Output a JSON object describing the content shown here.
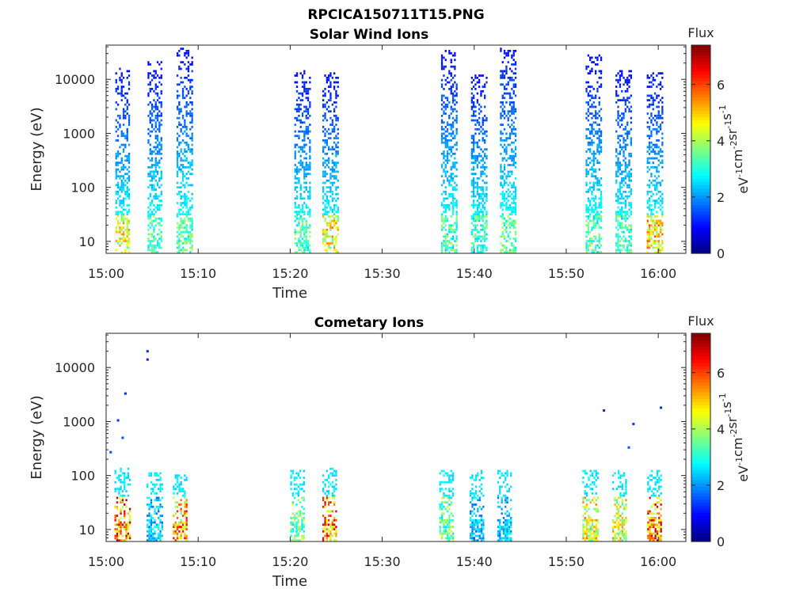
{
  "figure_title": "RPCICA150711T15.PNG",
  "chart_data": [
    {
      "type": "heatmap",
      "title": "Solar Wind Ions",
      "xlabel": "Time",
      "ylabel": "Energy (eV)",
      "x_ticks": [
        "15:00",
        "15:10",
        "15:20",
        "15:30",
        "15:40",
        "15:50",
        "16:00"
      ],
      "x_tick_minutes": [
        0,
        10,
        20,
        30,
        40,
        50,
        60
      ],
      "xlim_minutes": [
        0,
        63
      ],
      "y_scale": "log",
      "y_ticks": [
        "10",
        "100",
        "1000",
        "10000"
      ],
      "y_tick_values": [
        10,
        100,
        1000,
        10000
      ],
      "ylim": [
        6,
        43000
      ],
      "colorbar": {
        "title": "Flux",
        "label": "eV-1cm-2sr-1s-1",
        "min": 0,
        "max": 7.4,
        "ticks": [
          "0",
          "2",
          "4",
          "6"
        ],
        "tick_values": [
          0,
          2,
          4,
          6
        ],
        "colormap": "jet"
      },
      "bursts": [
        {
          "center_min": 1.8,
          "width_min": 1.6,
          "emax": 15000,
          "peak_flux": 5.6
        },
        {
          "center_min": 5.3,
          "width_min": 1.6,
          "emax": 20000,
          "peak_flux": 4.0
        },
        {
          "center_min": 8.5,
          "width_min": 1.7,
          "emax": 38000,
          "peak_flux": 4.2
        },
        {
          "center_min": 21.3,
          "width_min": 1.7,
          "emax": 14000,
          "peak_flux": 4.0
        },
        {
          "center_min": 24.4,
          "width_min": 1.8,
          "emax": 13000,
          "peak_flux": 5.6
        },
        {
          "center_min": 37.3,
          "width_min": 1.8,
          "emax": 33000,
          "peak_flux": 4.0
        },
        {
          "center_min": 40.5,
          "width_min": 1.7,
          "emax": 12000,
          "peak_flux": 4.0
        },
        {
          "center_min": 43.7,
          "width_min": 1.8,
          "emax": 38000,
          "peak_flux": 4.2
        },
        {
          "center_min": 53.0,
          "width_min": 1.8,
          "emax": 27000,
          "peak_flux": 4.0
        },
        {
          "center_min": 56.2,
          "width_min": 1.7,
          "emax": 14000,
          "peak_flux": 4.0
        },
        {
          "center_min": 59.6,
          "width_min": 1.7,
          "emax": 14000,
          "peak_flux": 6.0
        }
      ]
    },
    {
      "type": "heatmap",
      "title": "Cometary Ions",
      "xlabel": "Time",
      "ylabel": "Energy (eV)",
      "x_ticks": [
        "15:00",
        "15:10",
        "15:20",
        "15:30",
        "15:40",
        "15:50",
        "16:00"
      ],
      "x_tick_minutes": [
        0,
        10,
        20,
        30,
        40,
        50,
        60
      ],
      "xlim_minutes": [
        0,
        63
      ],
      "y_scale": "log",
      "y_ticks": [
        "10",
        "100",
        "1000",
        "10000"
      ],
      "y_tick_values": [
        10,
        100,
        1000,
        10000
      ],
      "ylim": [
        6,
        43000
      ],
      "colorbar": {
        "title": "Flux",
        "label": "eV-1cm-2sr-1s-1",
        "min": 0,
        "max": 7.4,
        "ticks": [
          "0",
          "2",
          "4",
          "6"
        ],
        "tick_values": [
          0,
          2,
          4,
          6
        ],
        "colormap": "jet"
      },
      "bursts": [
        {
          "center_min": 1.8,
          "width_min": 1.8,
          "emax": 130,
          "peak_flux": 7.0
        },
        {
          "center_min": 5.3,
          "width_min": 1.8,
          "emax": 110,
          "peak_flux": 3.0
        },
        {
          "center_min": 8.0,
          "width_min": 1.5,
          "emax": 100,
          "peak_flux": 6.5
        },
        {
          "center_min": 20.8,
          "width_min": 1.6,
          "emax": 120,
          "peak_flux": 4.5
        },
        {
          "center_min": 24.3,
          "width_min": 1.6,
          "emax": 130,
          "peak_flux": 7.0
        },
        {
          "center_min": 37.0,
          "width_min": 1.6,
          "emax": 120,
          "peak_flux": 4.5
        },
        {
          "center_min": 40.3,
          "width_min": 1.6,
          "emax": 120,
          "peak_flux": 3.0
        },
        {
          "center_min": 43.3,
          "width_min": 1.6,
          "emax": 120,
          "peak_flux": 3.0
        },
        {
          "center_min": 52.6,
          "width_min": 1.7,
          "emax": 120,
          "peak_flux": 5.8
        },
        {
          "center_min": 55.8,
          "width_min": 1.6,
          "emax": 120,
          "peak_flux": 5.5
        },
        {
          "center_min": 59.6,
          "width_min": 1.6,
          "emax": 120,
          "peak_flux": 7.0
        }
      ],
      "scattered_points": [
        {
          "min": 4.5,
          "energy": 20000,
          "flux": 1.2
        },
        {
          "min": 4.5,
          "energy": 14000,
          "flux": 1.2
        },
        {
          "min": 2.1,
          "energy": 3300,
          "flux": 1.2
        },
        {
          "min": 1.3,
          "energy": 1050,
          "flux": 1.3
        },
        {
          "min": 1.8,
          "energy": 500,
          "flux": 1.5
        },
        {
          "min": 54.1,
          "energy": 1600,
          "flux": 1.2
        },
        {
          "min": 57.3,
          "energy": 900,
          "flux": 1.3
        },
        {
          "min": 60.3,
          "energy": 1800,
          "flux": 1.2
        },
        {
          "min": 56.8,
          "energy": 330,
          "flux": 1.5
        },
        {
          "min": 0.5,
          "energy": 270,
          "flux": 1.5
        }
      ]
    }
  ]
}
